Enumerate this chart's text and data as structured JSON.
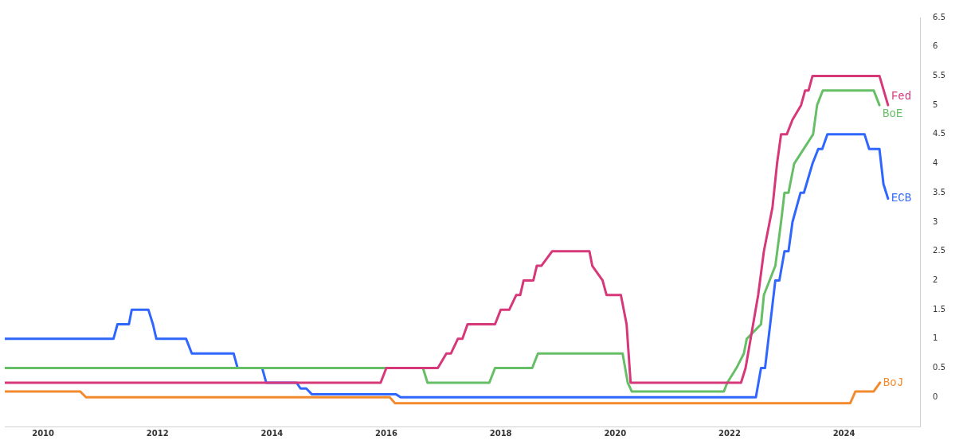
{
  "chart_data": {
    "type": "line",
    "xlim": [
      2009.33,
      2025.33
    ],
    "xticks": [
      2010,
      2012,
      2014,
      2016,
      2018,
      2020,
      2022,
      2024
    ],
    "ylim": [
      -0.5,
      6.5
    ],
    "yticks": [
      0,
      0.5,
      1,
      1.5,
      2,
      2.5,
      3,
      3.5,
      4,
      4.5,
      5,
      5.5,
      6,
      6.5
    ],
    "grid": false,
    "legend": false,
    "marker": "none",
    "line_style": "solid",
    "series": [
      {
        "name": "Fed",
        "color": "#d6387a",
        "x": [
          2009.33,
          2015.9,
          2016.0,
          2016.9,
          2017.05,
          2017.13,
          2017.25,
          2017.33,
          2017.42,
          2017.9,
          2018.0,
          2018.15,
          2018.27,
          2018.34,
          2018.4,
          2018.57,
          2018.63,
          2018.71,
          2018.9,
          2019.55,
          2019.6,
          2019.78,
          2019.85,
          2020.1,
          2020.2,
          2020.27,
          2022.2,
          2022.28,
          2022.5,
          2022.6,
          2022.75,
          2022.83,
          2022.9,
          2023.0,
          2023.1,
          2023.25,
          2023.32,
          2023.38,
          2023.45,
          2024.62,
          2024.77
        ],
        "values": [
          0.25,
          0.25,
          0.5,
          0.5,
          0.75,
          0.75,
          1.0,
          1.0,
          1.25,
          1.25,
          1.5,
          1.5,
          1.75,
          1.75,
          2.0,
          2.0,
          2.25,
          2.25,
          2.5,
          2.5,
          2.25,
          2.0,
          1.75,
          1.75,
          1.25,
          0.25,
          0.25,
          0.5,
          1.75,
          2.5,
          3.25,
          4.0,
          4.5,
          4.5,
          4.75,
          5.0,
          5.25,
          5.25,
          5.5,
          5.5,
          5.0
        ]
      },
      {
        "name": "BoE",
        "color": "#66bf66",
        "x": [
          2009.33,
          2016.64,
          2016.72,
          2017.8,
          2017.9,
          2018.55,
          2018.65,
          2020.13,
          2020.22,
          2020.29,
          2021.9,
          2021.96,
          2022.12,
          2022.25,
          2022.3,
          2022.55,
          2022.6,
          2022.8,
          2022.9,
          2022.96,
          2023.03,
          2023.13,
          2023.46,
          2023.53,
          2023.63,
          2024.52,
          2024.62
        ],
        "values": [
          0.5,
          0.5,
          0.25,
          0.25,
          0.5,
          0.5,
          0.75,
          0.75,
          0.25,
          0.1,
          0.1,
          0.25,
          0.5,
          0.75,
          1.0,
          1.25,
          1.75,
          2.25,
          3.0,
          3.5,
          3.5,
          4.0,
          4.5,
          5.0,
          5.25,
          5.25,
          5.0
        ]
      },
      {
        "name": "ECB",
        "color": "#2f66ff",
        "x": [
          2009.33,
          2011.23,
          2011.3,
          2011.5,
          2011.55,
          2011.84,
          2011.92,
          2011.98,
          2012.5,
          2012.6,
          2013.33,
          2013.4,
          2013.83,
          2013.9,
          2014.43,
          2014.5,
          2014.6,
          2014.7,
          2016.17,
          2016.25,
          2022.46,
          2022.55,
          2022.62,
          2022.8,
          2022.87,
          2022.96,
          2023.03,
          2023.1,
          2023.24,
          2023.3,
          2023.45,
          2023.55,
          2023.62,
          2023.71,
          2024.36,
          2024.44,
          2024.62,
          2024.69,
          2024.77
        ],
        "values": [
          1.0,
          1.0,
          1.25,
          1.25,
          1.5,
          1.5,
          1.25,
          1.0,
          1.0,
          0.75,
          0.75,
          0.5,
          0.5,
          0.25,
          0.25,
          0.15,
          0.15,
          0.05,
          0.05,
          0,
          0,
          0.5,
          0.5,
          2.0,
          2.0,
          2.5,
          2.5,
          3.0,
          3.5,
          3.5,
          4.0,
          4.25,
          4.25,
          4.5,
          4.5,
          4.25,
          4.25,
          3.65,
          3.4
        ]
      },
      {
        "name": "BoJ",
        "color": "#f28a2e",
        "x": [
          2009.33,
          2010.65,
          2010.75,
          2016.06,
          2016.15,
          2024.11,
          2024.2,
          2024.52,
          2024.63
        ],
        "values": [
          0.1,
          0.1,
          0,
          0,
          -0.1,
          -0.1,
          0.1,
          0.1,
          0.25
        ]
      }
    ]
  }
}
